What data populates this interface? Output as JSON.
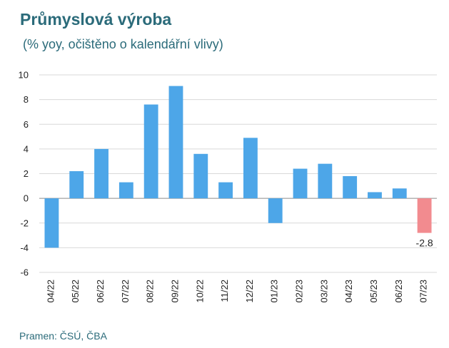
{
  "header": {
    "title": "Průmyslová výroba",
    "subtitle": "(% yoy, očištěno o kalendářní vlivy)"
  },
  "footer": {
    "source": "Pramen: ČSÚ, ČBA"
  },
  "colors": {
    "positive": "#4da6e8",
    "negative": "#f28b8f",
    "grid": "#d9d9d9",
    "text": "#2b6b7a"
  },
  "chart_data": {
    "type": "bar",
    "title": "Průmyslová výroba",
    "subtitle": "(% yoy, očištěno o kalendářní vlivy)",
    "categories": [
      "04/22",
      "05/22",
      "06/22",
      "07/22",
      "08/22",
      "09/22",
      "10/22",
      "11/22",
      "12/22",
      "01/23",
      "02/23",
      "03/23",
      "04/23",
      "05/23",
      "06/23",
      "07/23"
    ],
    "values": [
      -4.0,
      2.2,
      4.0,
      1.3,
      7.6,
      9.1,
      3.6,
      1.3,
      4.9,
      -2.0,
      2.4,
      2.8,
      1.8,
      0.5,
      0.8,
      -2.8
    ],
    "ylim": [
      -6,
      10
    ],
    "yticks": [
      -6,
      -4,
      -2,
      0,
      2,
      4,
      6,
      8,
      10
    ],
    "grid": true,
    "highlight_last": true,
    "data_labels": [
      {
        "index": 15,
        "text": "-2.8"
      }
    ]
  }
}
